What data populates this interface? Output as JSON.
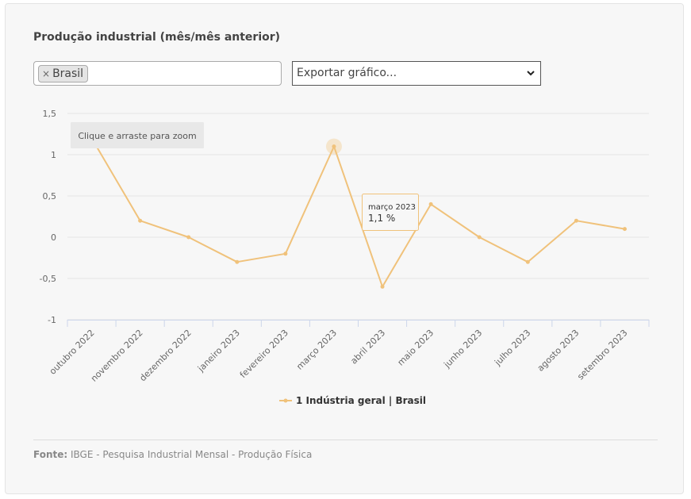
{
  "title": "Produção industrial (mês/mês anterior)",
  "selector": {
    "chip_label": "Brasil",
    "chip_remove": "×"
  },
  "export": {
    "label": "Exportar gráfico..."
  },
  "zoom_hint": "Clique e arraste para zoom",
  "tooltip": {
    "category": "março 2023",
    "value_text": "1,1 %"
  },
  "legend": {
    "label": "1 Indústria geral | Brasil"
  },
  "source": {
    "label": "Fonte:",
    "text": "IBGE - Pesquisa Industrial Mensal - Produção Física"
  },
  "colors": {
    "series": "#f0c27b",
    "grid": "#e6e6e6",
    "axis": "#ccd6eb",
    "panel": "#f7f7f7"
  },
  "chart_data": {
    "type": "line",
    "categories": [
      "outubro 2022",
      "novembro 2022",
      "dezembro 2022",
      "janeiro 2023",
      "fevereiro 2023",
      "março 2023",
      "abril 2023",
      "maio 2023",
      "junho 2023",
      "julho 2023",
      "agosto 2023",
      "setembro 2023"
    ],
    "series": [
      {
        "name": "1 Indústria geral | Brasil",
        "values": [
          1.2,
          0.2,
          0.0,
          -0.3,
          -0.2,
          1.1,
          -0.6,
          0.4,
          0.0,
          -0.3,
          0.2,
          0.1
        ]
      }
    ],
    "yticks": [
      "1,5",
      "1",
      "0,5",
      "0",
      "-0,5",
      "-1"
    ],
    "ylim": [
      -1,
      1.5
    ],
    "highlighted_category": "março 2023",
    "grid": true,
    "legend_position": "bottom"
  }
}
